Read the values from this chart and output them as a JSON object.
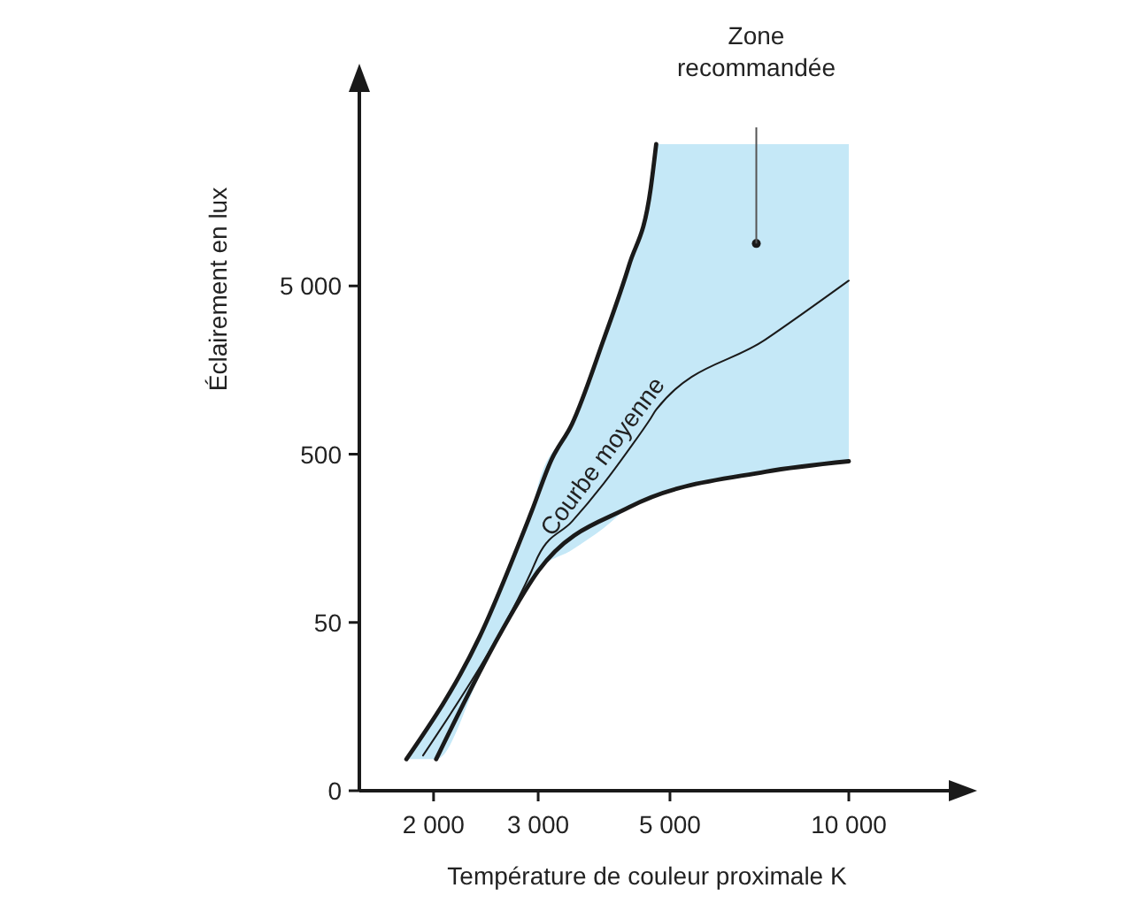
{
  "chart_data": {
    "type": "line",
    "xlabel": "Température de couleur proximale K",
    "ylabel": "Éclairement en lux",
    "log": "xy",
    "grid": false,
    "xlim": [
      1500,
      16000
    ],
    "xticks": [
      {
        "value": 2000,
        "label": "2 000"
      },
      {
        "value": 3000,
        "label": "3 000"
      },
      {
        "value": 5000,
        "label": "5 000"
      },
      {
        "value": 10000,
        "label": "10 000"
      }
    ],
    "ylim": [
      0,
      95000
    ],
    "yticks": [
      0,
      50,
      500,
      {
        "value": 5000,
        "label": "5 000"
      }
    ],
    "series": [
      {
        "name": "Courbe moyenne",
        "color": "#1a1a1a",
        "x": [
          1800,
          1920,
          2020,
          2390,
          2600,
          2920,
          3000,
          3420,
          3860,
          4270,
          4640,
          4740,
          7240,
          10000
        ],
        "values": [
          null,
          8.1,
          10.6,
          26.9,
          44.7,
          100,
          124,
          199,
          332,
          537,
          817,
          919,
          2400,
          5380
        ],
        "lower": [
          7.7,
          7.7,
          7.7,
          24,
          44,
          87,
          101,
          135,
          181,
          242,
          279,
          288,
          393,
          454
        ],
        "upper": [
          7.7,
          10.9,
          14.5,
          41,
          79,
          225,
          330,
          755,
          2360,
          6690,
          18970,
          34800,
          34800,
          34800
        ]
      },
      {
        "color": "#1a1a1a",
        "x": [
          1800,
          2390,
          2920,
          3160,
          3420,
          3860,
          4270,
          4640,
          4740
        ],
        "values": [
          7.7,
          41,
          225,
          465,
          755,
          2360,
          6690,
          18970,
          34800
        ]
      },
      {
        "color": "#1a1a1a",
        "x": [
          2020,
          2600,
          3000,
          4270,
          7240,
          10000
        ],
        "values": [
          7.7,
          44,
          101,
          242,
          393,
          454
        ]
      }
    ],
    "annotations": [
      "Zone recommandée"
    ]
  }
}
